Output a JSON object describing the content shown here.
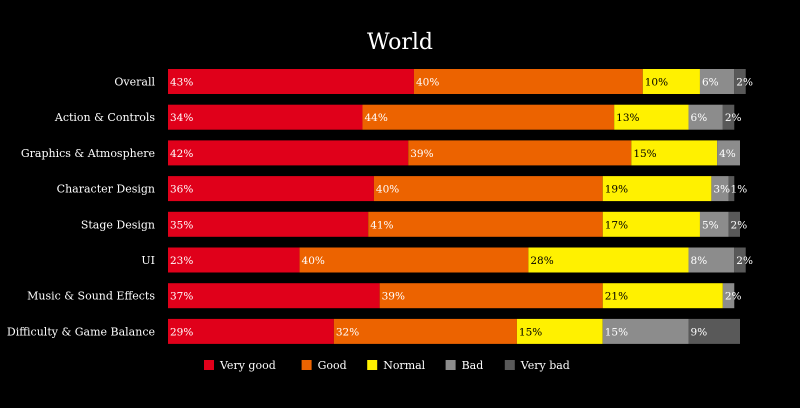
{
  "chart_data": {
    "type": "bar",
    "orientation": "horizontal",
    "stacked": true,
    "title": "World",
    "xlabel": "",
    "ylabel": "",
    "xlim": [
      0,
      100
    ],
    "grid": false,
    "legend_position": "bottom",
    "categories": [
      "Overall",
      "Action & Controls",
      "Graphics & Atmosphere",
      "Character Design",
      "Stage Design",
      "UI",
      "Music & Sound Effects",
      "Difficulty & Game Balance"
    ],
    "series": [
      {
        "name": "Very good",
        "color": "#e0001a",
        "label_color": "#ffffff",
        "values": [
          43,
          34,
          42,
          36,
          35,
          23,
          37,
          29
        ]
      },
      {
        "name": "Good",
        "color": "#ec6300",
        "label_color": "#ffffff",
        "values": [
          40,
          44,
          39,
          40,
          41,
          40,
          39,
          32
        ]
      },
      {
        "name": "Normal",
        "color": "#fff100",
        "label_color": "#000000",
        "values": [
          10,
          13,
          15,
          19,
          17,
          28,
          21,
          15
        ]
      },
      {
        "name": "Bad",
        "color": "#8c8c8c",
        "label_color": "#ffffff",
        "values": [
          6,
          6,
          4,
          3,
          5,
          8,
          2,
          15
        ]
      },
      {
        "name": "Very bad",
        "color": "#595959",
        "label_color": "#ffffff",
        "values": [
          2,
          2,
          null,
          1,
          2,
          2,
          null,
          9
        ]
      }
    ]
  }
}
